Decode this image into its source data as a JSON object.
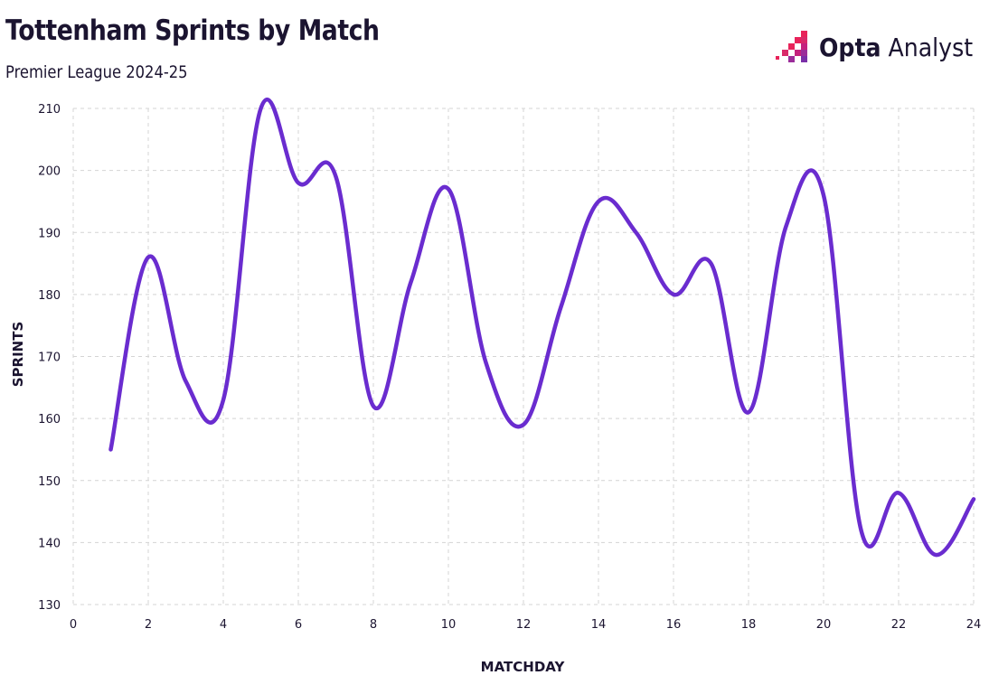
{
  "header": {
    "title": "Tottenham Sprints by Match",
    "subtitle": "Premier League 2024-25"
  },
  "brand": {
    "bold": "Opta",
    "light": "Analyst",
    "colors": [
      "#e8235a",
      "#c4237e",
      "#9b2d9a"
    ]
  },
  "chart_data": {
    "type": "line",
    "title": "Tottenham Sprints by Match",
    "subtitle": "Premier League 2024-25",
    "xlabel": "MATCHDAY",
    "ylabel": "SPRINTS",
    "xlim": [
      0,
      24
    ],
    "ylim": [
      130,
      210
    ],
    "xticks": [
      0,
      2,
      4,
      6,
      8,
      10,
      12,
      14,
      16,
      18,
      20,
      22,
      24
    ],
    "yticks": [
      130,
      140,
      150,
      160,
      170,
      180,
      190,
      200,
      210
    ],
    "grid": true,
    "line_color": "#6a2ccf",
    "series": [
      {
        "name": "Sprints",
        "x": [
          1,
          2,
          3,
          4,
          5,
          6,
          7,
          8,
          9,
          10,
          11,
          12,
          13,
          14,
          15,
          16,
          17,
          18,
          19,
          20,
          21,
          22,
          23,
          24
        ],
        "values": [
          155,
          186,
          166,
          163,
          210,
          198,
          199,
          162,
          182,
          197,
          169,
          159,
          178,
          195,
          190,
          180,
          185,
          161,
          191,
          196,
          142,
          148,
          138,
          147
        ]
      }
    ]
  }
}
